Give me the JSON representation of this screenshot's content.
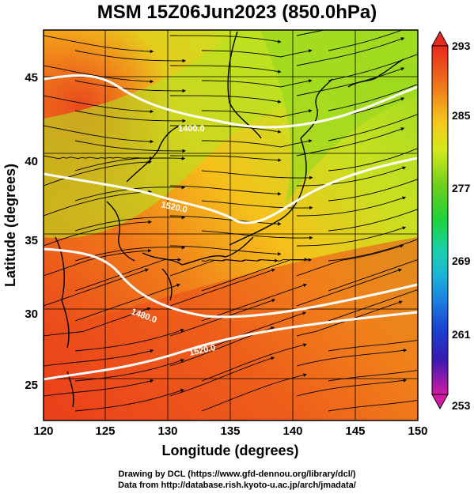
{
  "title": "MSM 15Z06Jun2023 (850.0hPa)",
  "x_axis": {
    "label": "Longitude (degrees)",
    "ticks": [
      "120",
      "125",
      "130",
      "135",
      "140",
      "145",
      "150"
    ]
  },
  "y_axis": {
    "label": "Latitude  (degrees)",
    "ticks": [
      "25",
      "30",
      "35",
      "40",
      "45"
    ]
  },
  "colorbar": {
    "ticks": [
      "293",
      "285",
      "277",
      "269",
      "261",
      "253"
    ],
    "colors_top_to_bottom": [
      "#e8291c",
      "#f07a1a",
      "#f5c81a",
      "#d4e81a",
      "#6fd01a",
      "#1ad23a",
      "#1ad2a6",
      "#1ab4d8",
      "#1a78e0",
      "#1a3ed0",
      "#3a1ab0",
      "#8a1ab8",
      "#d21aa6"
    ]
  },
  "contours": [
    {
      "label": "1400.0"
    },
    {
      "label": "1520.0"
    },
    {
      "label": "1480.0"
    },
    {
      "label": "1520.0"
    }
  ],
  "credits": {
    "line1": "Drawing by DCL (https://www.gfd-dennou.org/library/dcl/)",
    "line2": "Data from http://database.rish.kyoto-u.ac.jp/arch/jmadata/"
  },
  "colors": {
    "warm": "#e8391c",
    "mid": "#f5b01a",
    "cool": "#a8e020"
  }
}
